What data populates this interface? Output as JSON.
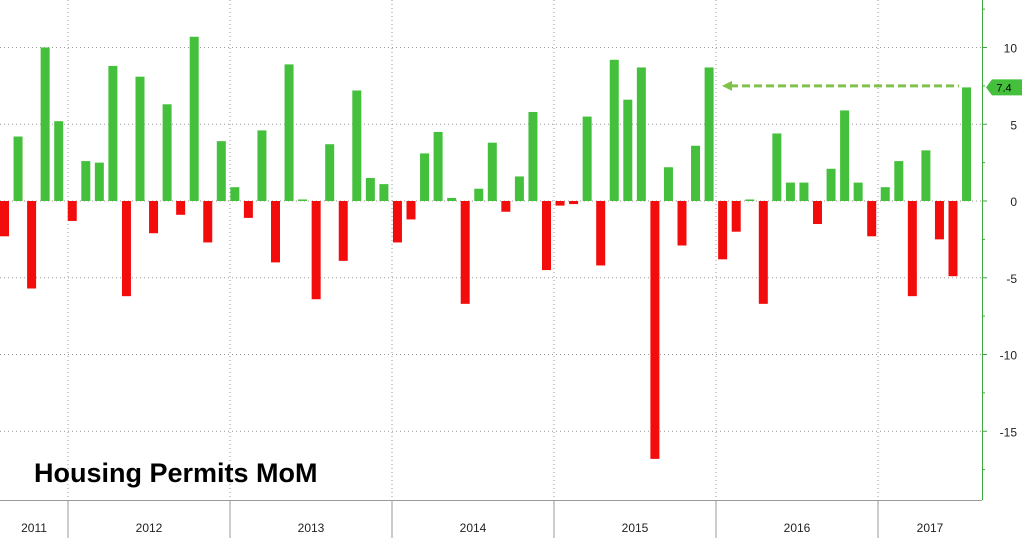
{
  "chart_data": {
    "type": "bar",
    "title": "Housing Permits MoM",
    "xlabel": "",
    "ylabel": "",
    "ylim": [
      -18.5,
      13
    ],
    "yticks": [
      10,
      5,
      0,
      -5,
      -10,
      -15
    ],
    "grid": true,
    "axis_side": "right",
    "positive_color": "#44c03c",
    "negative_color": "#f20c0c",
    "year_labels": [
      "2011",
      "2012",
      "2013",
      "2014",
      "2015",
      "2016",
      "2017"
    ],
    "values": [
      -2.3,
      4.2,
      -5.7,
      10.0,
      5.2,
      -1.3,
      2.6,
      2.5,
      8.8,
      -6.2,
      8.1,
      -2.1,
      6.3,
      -0.9,
      10.7,
      -2.7,
      3.9,
      0.9,
      -1.1,
      4.6,
      -4.0,
      8.9,
      0.1,
      -6.4,
      3.7,
      -3.9,
      7.2,
      1.5,
      1.1,
      -2.7,
      -1.2,
      3.1,
      4.5,
      0.2,
      -6.7,
      0.8,
      3.8,
      -0.7,
      1.6,
      5.8,
      -4.5,
      -0.3,
      -0.2,
      5.5,
      -4.2,
      9.2,
      6.6,
      8.7,
      -16.8,
      2.2,
      -2.9,
      3.6,
      8.7,
      -3.8,
      -2.0,
      0.1,
      -6.7,
      4.4,
      1.2,
      1.2,
      -1.5,
      2.1,
      5.9,
      1.2,
      -2.3,
      0.9,
      2.6,
      -6.2,
      3.3,
      -2.5,
      -4.9,
      7.4
    ],
    "last_value_label": "7.4"
  }
}
